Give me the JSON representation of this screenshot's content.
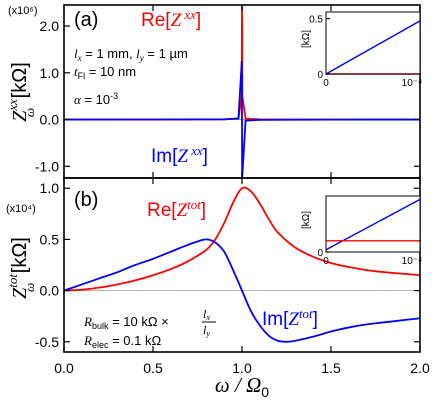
{
  "chart_data": [
    {
      "panel": "a",
      "panel_label": "(a)",
      "type": "line",
      "multiplier_label": "(x10⁶)",
      "ylabel": {
        "main": "Z",
        "sub": "ω",
        "sup": "xx",
        "unit": "[kΩ]"
      },
      "xlim": [
        0,
        2
      ],
      "ylim": [
        -1.25,
        2.45
      ],
      "yticks": [
        -1.0,
        0.0,
        1.0,
        2.0
      ],
      "ytick_labels": [
        "-1.0",
        "0.0",
        "1.0",
        "2.0"
      ],
      "xticks": [
        0,
        0.5,
        1.0,
        1.5,
        2.0
      ],
      "resonance": {
        "omega_over_omega0": 1.0,
        "alpha": 0.001
      },
      "series": [
        {
          "name": "Re[Z xx]",
          "label_main": "Re[",
          "label_var": "Z",
          "label_sup": " xx",
          "label_close": "]",
          "color": "#ff0000",
          "peak_value": 2.5,
          "x": [
            0,
            0.5,
            0.9,
            0.98,
            0.998,
            1.0,
            1.002,
            1.02,
            1.1,
            1.5,
            2.0
          ],
          "y": [
            0,
            0.0,
            0.003,
            0.02,
            0.5,
            2.5,
            0.5,
            0.02,
            0.003,
            0.0,
            0
          ]
        },
        {
          "name": "Im[Z xx]",
          "label_main": "Im[",
          "label_var": "Z",
          "label_sup": " xx",
          "label_close": "]",
          "color": "#0000ff",
          "x": [
            0,
            0.5,
            0.9,
            0.98,
            0.999,
            1.001,
            1.02,
            1.1,
            1.5,
            2.0
          ],
          "y": [
            0,
            0.0007,
            0.005,
            0.025,
            1.25,
            -1.25,
            -0.025,
            -0.005,
            -0.0007,
            -0.0003
          ]
        }
      ],
      "annotations": [
        {
          "type": "l",
          "text_a": "l",
          "sub_a": "x",
          "mid": " = 1 mm, ",
          "text_b": "l",
          "sub_b": "y",
          "end": " = 1 µm"
        },
        {
          "type": "tfl",
          "text_a": "t",
          "sub_a": "Fl",
          "end": " = 10 nm"
        },
        {
          "type": "alpha",
          "text_a": "α",
          "end": " = 10",
          "sup": "-3"
        }
      ],
      "inset": {
        "ylabel": "[kΩ]",
        "yticks": [
          "0",
          "0.5"
        ],
        "xticks": [
          "0",
          "10⁻⁴"
        ],
        "xlim": [
          0,
          0.0001
        ],
        "ylim": [
          0,
          0.56
        ],
        "series": [
          {
            "color": "#0000ff",
            "x": [
              0,
              0.0001
            ],
            "y": [
              0,
              0.48
            ]
          },
          {
            "color": "#ff0000",
            "x": [
              0,
              0.0001
            ],
            "y": [
              0,
              0
            ]
          }
        ]
      }
    },
    {
      "panel": "b",
      "panel_label": "(b)",
      "type": "line",
      "multiplier_label": "(x10⁴)",
      "ylabel": {
        "main": "Z",
        "sub": "ω",
        "sup": "tot",
        "unit": "[kΩ]"
      },
      "xlabel": {
        "main": "ω / Ω",
        "sub": "0"
      },
      "xlim": [
        0,
        2
      ],
      "ylim": [
        -0.6,
        1.1
      ],
      "yticks": [
        -0.5,
        0.0,
        0.5,
        1.0
      ],
      "ytick_labels": [
        "-0.5",
        "0.0",
        "0.5",
        "1.0"
      ],
      "xticks": [
        0,
        0.5,
        1.0,
        1.5,
        2.0
      ],
      "xtick_labels": [
        "0.0",
        "0.5",
        "1.0",
        "1.5",
        "2.0"
      ],
      "series": [
        {
          "name": "Re[Z tot]",
          "label_main": "Re[",
          "label_var": "Z",
          "label_sup": "tot",
          "label_close": "]",
          "color": "#ff0000",
          "x": [
            0,
            0.1,
            0.2,
            0.3,
            0.4,
            0.5,
            0.6,
            0.7,
            0.8,
            0.85,
            0.9,
            0.95,
            1.0,
            1.05,
            1.1,
            1.15,
            1.2,
            1.3,
            1.4,
            1.5,
            1.6,
            1.7,
            1.8,
            1.9,
            2.0
          ],
          "y": [
            0,
            0.008,
            0.03,
            0.06,
            0.1,
            0.15,
            0.21,
            0.29,
            0.4,
            0.5,
            0.66,
            0.86,
            1.0,
            0.97,
            0.85,
            0.7,
            0.57,
            0.42,
            0.33,
            0.27,
            0.23,
            0.2,
            0.18,
            0.165,
            0.15
          ]
        },
        {
          "name": "Im[Z tot]",
          "label_main": "Im[",
          "label_var": "Z",
          "label_sup": "tot",
          "label_close": "]",
          "color": "#0000ff",
          "x": [
            0,
            0.1,
            0.2,
            0.3,
            0.4,
            0.5,
            0.6,
            0.7,
            0.75,
            0.8,
            0.85,
            0.9,
            0.95,
            1.0,
            1.05,
            1.1,
            1.15,
            1.2,
            1.25,
            1.3,
            1.4,
            1.5,
            1.6,
            1.7,
            1.8,
            1.9,
            2.0
          ],
          "y": [
            0,
            0.06,
            0.12,
            0.18,
            0.25,
            0.31,
            0.38,
            0.45,
            0.48,
            0.5,
            0.47,
            0.38,
            0.2,
            0.0,
            -0.2,
            -0.34,
            -0.44,
            -0.49,
            -0.5,
            -0.49,
            -0.45,
            -0.4,
            -0.36,
            -0.33,
            -0.31,
            -0.29,
            -0.27
          ]
        }
      ],
      "annotations": [
        {
          "type": "rbulk",
          "text_a": "R",
          "sub_a": "bulk",
          "end": " = 10 kΩ × ",
          "frac_num": "l",
          "frac_num_sub": "x",
          "frac_den": "l",
          "frac_den_sub": "y"
        },
        {
          "type": "relec",
          "text_a": "R",
          "sub_a": "elec",
          "end": " = 0.1 kΩ"
        }
      ],
      "inset": {
        "ylabel": "[kΩ]",
        "yticks": [
          "0"
        ],
        "xticks": [
          "0",
          "10⁻⁴"
        ],
        "xlim": [
          0,
          0.0001
        ],
        "ylim": [
          0,
          0.5
        ],
        "series": [
          {
            "color": "#0000ff",
            "x": [
              0,
              0.0001
            ],
            "y": [
              0.02,
              0.47
            ]
          },
          {
            "color": "#ff0000",
            "x": [
              0,
              0.0001
            ],
            "y": [
              0.1,
              0.1
            ]
          }
        ]
      }
    }
  ]
}
